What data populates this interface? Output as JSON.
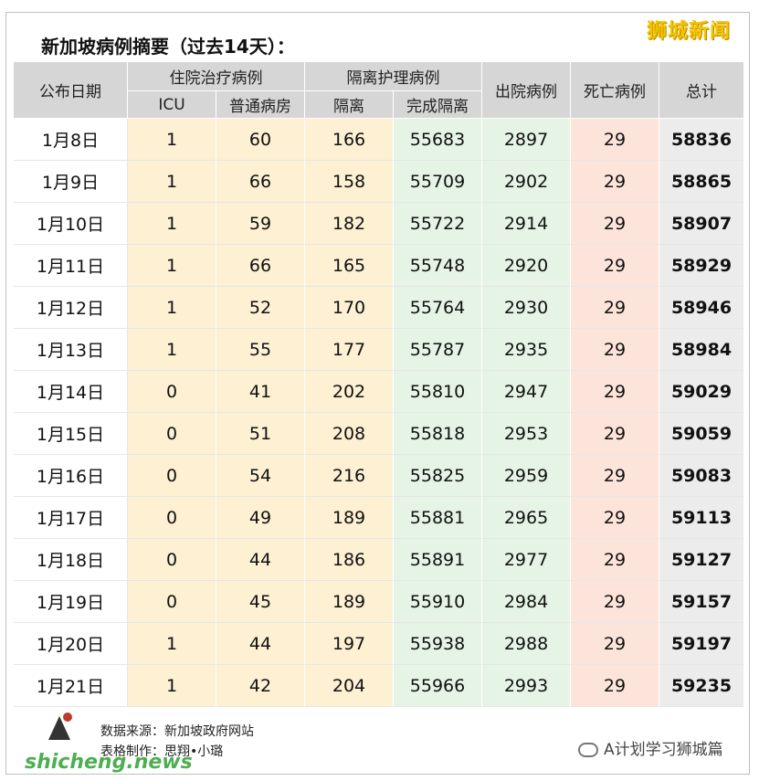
{
  "brand_top": "狮城新闻",
  "title": "新加坡病例摘要（过去14天）：",
  "header": {
    "date": "公布日期",
    "hospital_group": "住院治疗病例",
    "isolation_group": "隔离护理病例",
    "icu": "ICU",
    "ward": "普通病房",
    "isolation": "隔离",
    "completed": "完成隔离",
    "discharged": "出院病例",
    "deaths": "死亡病例",
    "total": "总计"
  },
  "rows": [
    [
      "1月8日",
      "1",
      "60",
      "166",
      "55683",
      "2897",
      "29",
      "58836"
    ],
    [
      "1月9日",
      "1",
      "66",
      "158",
      "55709",
      "2902",
      "29",
      "58865"
    ],
    [
      "1月10日",
      "1",
      "59",
      "182",
      "55722",
      "2914",
      "29",
      "58907"
    ],
    [
      "1月11日",
      "1",
      "66",
      "165",
      "55748",
      "2920",
      "29",
      "58929"
    ],
    [
      "1月12日",
      "1",
      "52",
      "170",
      "55764",
      "2930",
      "29",
      "58946"
    ],
    [
      "1月13日",
      "1",
      "55",
      "177",
      "55787",
      "2935",
      "29",
      "58984"
    ],
    [
      "1月14日",
      "0",
      "41",
      "202",
      "55810",
      "2947",
      "29",
      "59029"
    ],
    [
      "1月15日",
      "0",
      "51",
      "208",
      "55818",
      "2953",
      "29",
      "59059"
    ],
    [
      "1月16日",
      "0",
      "54",
      "216",
      "55825",
      "2959",
      "29",
      "59083"
    ],
    [
      "1月17日",
      "0",
      "49",
      "189",
      "55881",
      "2965",
      "29",
      "59113"
    ],
    [
      "1月18日",
      "0",
      "44",
      "186",
      "55891",
      "2977",
      "29",
      "59127"
    ],
    [
      "1月19日",
      "0",
      "45",
      "189",
      "55910",
      "2984",
      "29",
      "59157"
    ],
    [
      "1月20日",
      "1",
      "44",
      "197",
      "55938",
      "2988",
      "29",
      "59197"
    ],
    [
      "1月21日",
      "1",
      "42",
      "204",
      "55966",
      "2993",
      "29",
      "59235"
    ]
  ],
  "footer": {
    "source": "数据来源：新加坡政府网站",
    "author": "表格制作：思翔•小璐",
    "site": "shicheng.news",
    "wechat": "A计划学习狮城篇"
  }
}
